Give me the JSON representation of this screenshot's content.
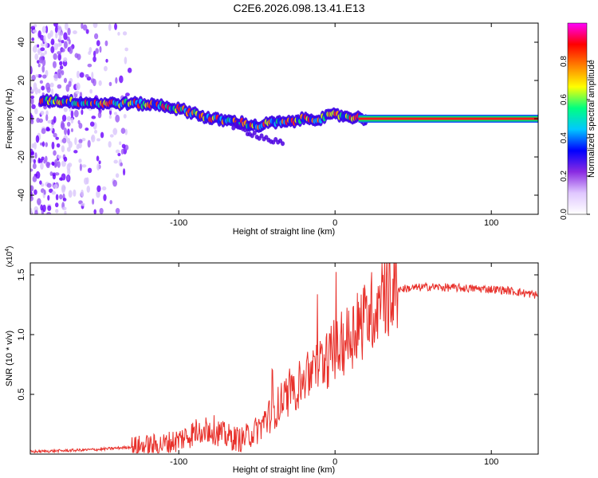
{
  "title": "C2E6.2026.098.13.41.E13",
  "chart_data": [
    {
      "type": "heatmap",
      "xlabel": "Height of straight line (km)",
      "ylabel": "Frequency (Hz)",
      "xlim": [
        -195,
        130
      ],
      "ylim": [
        -50,
        50
      ],
      "xticks": [
        -100,
        0,
        100
      ],
      "yticks": [
        -40,
        -20,
        0,
        20,
        40
      ],
      "colorbar": {
        "label": "Normalized spectral amplitude",
        "range": [
          0,
          1
        ],
        "ticks": [
          "0.0",
          "0.2",
          "0.4",
          "0.6",
          "0.8"
        ],
        "colors": [
          "#ffffff",
          "#e0c8ff",
          "#8a2be2",
          "#0000ff",
          "#00c8ff",
          "#00ff80",
          "#ffff00",
          "#ff8000",
          "#ff0000",
          "#ff00ff"
        ]
      },
      "ridge": {
        "x": [
          -190,
          -170,
          -150,
          -130,
          -110,
          -100,
          -90,
          -80,
          -70,
          -60,
          -50,
          -40,
          -30,
          -20,
          -10,
          0,
          10,
          20,
          40,
          60,
          80,
          100,
          130
        ],
        "freq": [
          10,
          9,
          8,
          8,
          7,
          5,
          3,
          0,
          -1,
          -2,
          -4,
          -2,
          -2,
          0,
          0,
          2,
          1,
          0,
          0,
          0,
          0,
          0,
          0
        ]
      }
    },
    {
      "type": "line",
      "xlabel": "Height of straight line (km)",
      "ylabel": "SNR (10 * v/v)",
      "y_multiplier": "(x10",
      "y_multiplier_exp": "4",
      "xlim": [
        -195,
        130
      ],
      "ylim": [
        0,
        1.6
      ],
      "xticks": [
        -100,
        0,
        100
      ],
      "yticks": [
        0.5,
        1.0,
        1.5
      ],
      "ytick_labels": [
        "0.5",
        "1.0",
        "1.5"
      ],
      "color": "#e8302a",
      "trend": {
        "x": [
          -195,
          -170,
          -150,
          -130,
          -110,
          -100,
          -90,
          -80,
          -70,
          -60,
          -50,
          -40,
          -30,
          -20,
          -10,
          0,
          10,
          20,
          30,
          40,
          60,
          80,
          100,
          110,
          120,
          130
        ],
        "y": [
          0.02,
          0.03,
          0.04,
          0.06,
          0.08,
          0.12,
          0.18,
          0.22,
          0.15,
          0.12,
          0.2,
          0.35,
          0.5,
          0.62,
          0.75,
          0.85,
          1.0,
          1.15,
          1.3,
          1.38,
          1.4,
          1.39,
          1.38,
          1.37,
          1.35,
          1.33
        ]
      }
    }
  ]
}
